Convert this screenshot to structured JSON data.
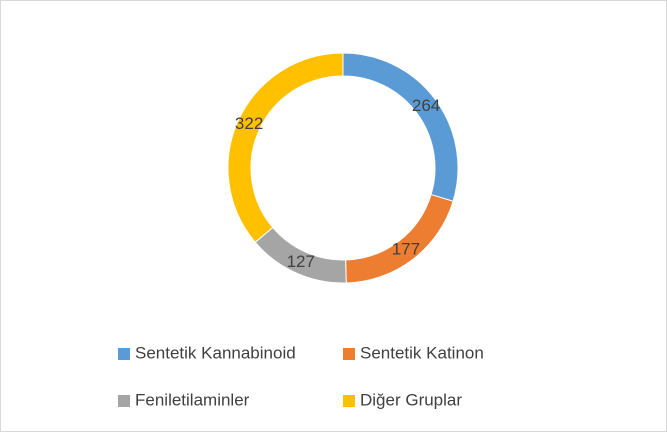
{
  "chart_data": {
    "type": "donut",
    "categories": [
      "Sentetik Kannabinoid",
      "Sentetik Katinon",
      "Feniletilaminler",
      "Diğer Gruplar"
    ],
    "values": [
      264,
      177,
      127,
      322
    ],
    "colors": [
      "#5b9bd5",
      "#ed7d31",
      "#a5a5a5",
      "#ffc000"
    ],
    "legend": "bottom"
  }
}
